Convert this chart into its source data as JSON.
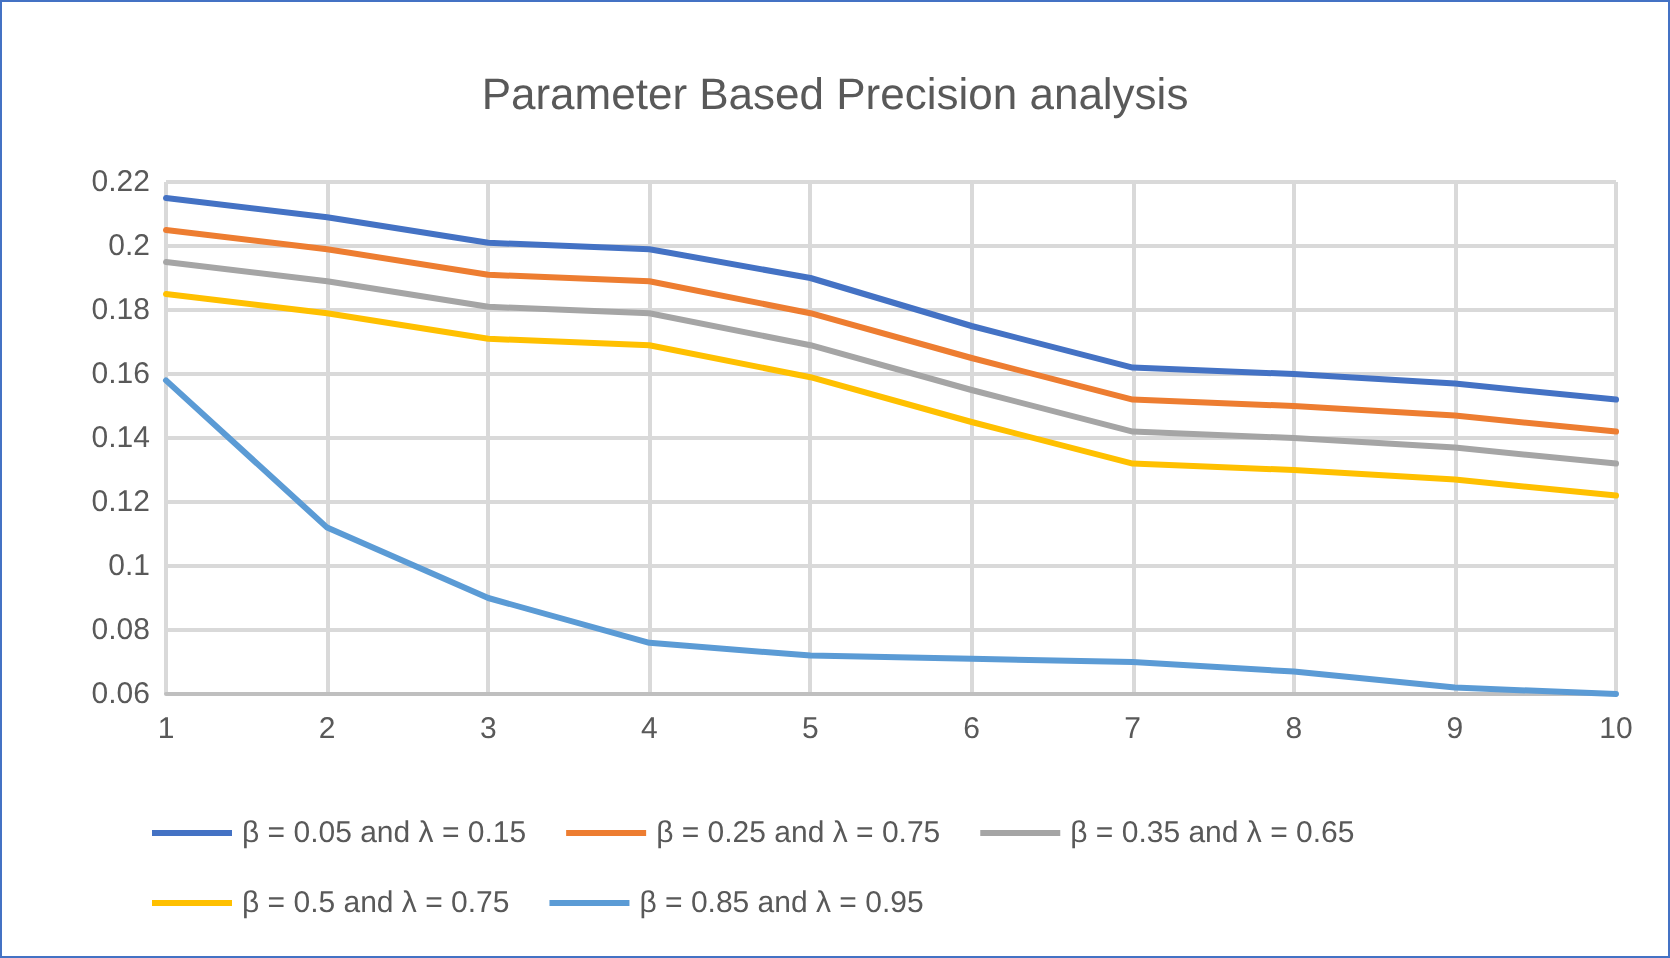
{
  "chart_data": {
    "type": "line",
    "title": "Parameter Based Precision analysis",
    "categories": [
      "1",
      "2",
      "3",
      "4",
      "5",
      "6",
      "7",
      "8",
      "9",
      "10"
    ],
    "series": [
      {
        "name": "β = 0.05 and λ = 0.15",
        "color": "#4472c4",
        "values": [
          0.215,
          0.209,
          0.201,
          0.199,
          0.19,
          0.175,
          0.162,
          0.16,
          0.157,
          0.152
        ]
      },
      {
        "name": "β = 0.25 and λ = 0.75",
        "color": "#ed7d31",
        "values": [
          0.205,
          0.199,
          0.191,
          0.189,
          0.179,
          0.165,
          0.152,
          0.15,
          0.147,
          0.142
        ]
      },
      {
        "name": "β = 0.35 and λ = 0.65",
        "color": "#a5a5a5",
        "values": [
          0.195,
          0.189,
          0.181,
          0.179,
          0.169,
          0.155,
          0.142,
          0.14,
          0.137,
          0.132
        ]
      },
      {
        "name": "β = 0.5 and λ = 0.75",
        "color": "#ffc000",
        "values": [
          0.185,
          0.179,
          0.171,
          0.169,
          0.159,
          0.145,
          0.132,
          0.13,
          0.127,
          0.122
        ]
      },
      {
        "name": "β = 0.85 and λ = 0.95",
        "color": "#5b9bd5",
        "values": [
          0.158,
          0.112,
          0.09,
          0.076,
          0.072,
          0.071,
          0.07,
          0.067,
          0.062,
          0.06
        ]
      }
    ],
    "ylim": [
      0.06,
      0.22
    ],
    "yticks": [
      0.06,
      0.08,
      0.1,
      0.12,
      0.14,
      0.16,
      0.18,
      0.2,
      0.22
    ],
    "grid": true,
    "legend": "bottom",
    "marker": "none",
    "line_style": "solid"
  }
}
